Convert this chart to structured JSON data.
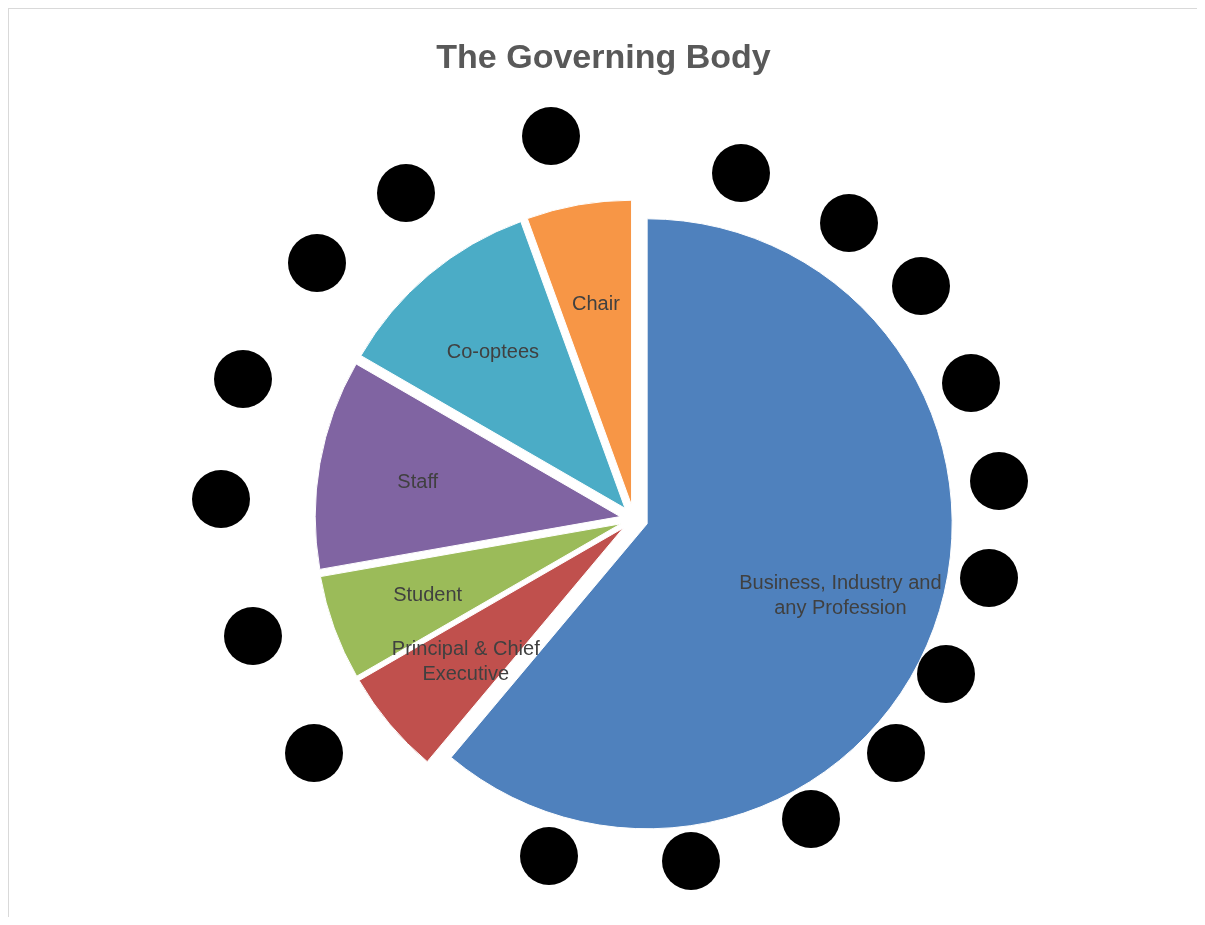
{
  "chart_data": {
    "type": "pie",
    "title": "The Governing Body",
    "categories": [
      "Business, Industry and any Profession",
      "Principal & Chief Executive",
      "Student",
      "Staff",
      "Co-optees",
      "Chair"
    ],
    "values": [
      61.11,
      5.56,
      5.56,
      11.11,
      11.11,
      5.55
    ],
    "colors": [
      "#4f81bd",
      "#c0504d",
      "#9bbb59",
      "#8064a2",
      "#4bacc6",
      "#f79646"
    ],
    "legend": false
  }
}
